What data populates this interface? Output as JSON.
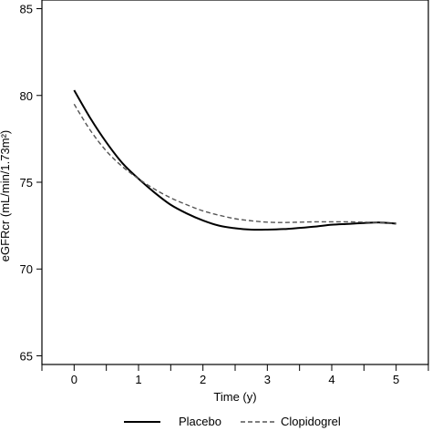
{
  "chart_data": {
    "type": "line",
    "title": "",
    "xlabel": "Time (y)",
    "ylabel": "eGFRcr (mL/min/1.73m²)",
    "xlim": [
      -0.5,
      5.5
    ],
    "ylim": [
      64.5,
      85.5
    ],
    "xticks": [
      0,
      1,
      2,
      3,
      4,
      5
    ],
    "xtick_labels": [
      "0",
      "1",
      "2",
      "3",
      "4",
      "5"
    ],
    "xminor_ticks": [
      -0.5,
      0.5,
      1.5,
      2.5,
      3.5,
      4.5,
      5.5
    ],
    "yticks": [
      65,
      70,
      75,
      80,
      85
    ],
    "ytick_labels": [
      "65",
      "70",
      "75",
      "80",
      "85"
    ],
    "grid": false,
    "legend_position": "bottom",
    "series": [
      {
        "name": "Placebo",
        "style": "solid",
        "color": "#000000",
        "x": [
          0,
          0.25,
          0.5,
          0.75,
          1,
          1.25,
          1.5,
          1.75,
          2,
          2.25,
          2.5,
          2.75,
          3,
          3.25,
          3.5,
          3.75,
          4,
          4.25,
          4.5,
          4.75,
          5
        ],
        "y": [
          80.3,
          78.7,
          77.3,
          76.1,
          75.2,
          74.4,
          73.7,
          73.2,
          72.8,
          72.5,
          72.35,
          72.27,
          72.27,
          72.3,
          72.37,
          72.45,
          72.55,
          72.6,
          72.65,
          72.68,
          72.62
        ]
      },
      {
        "name": "Clopidogrel",
        "style": "dashed",
        "color": "#555555",
        "x": [
          0,
          0.25,
          0.5,
          0.75,
          1,
          1.25,
          1.5,
          1.75,
          2,
          2.25,
          2.5,
          2.75,
          3,
          3.25,
          3.5,
          3.75,
          4,
          4.25,
          4.5,
          4.75,
          5
        ],
        "y": [
          79.5,
          78.0,
          76.8,
          75.9,
          75.2,
          74.6,
          74.1,
          73.7,
          73.35,
          73.1,
          72.9,
          72.78,
          72.7,
          72.68,
          72.7,
          72.72,
          72.72,
          72.72,
          72.7,
          72.67,
          72.6
        ]
      }
    ]
  }
}
